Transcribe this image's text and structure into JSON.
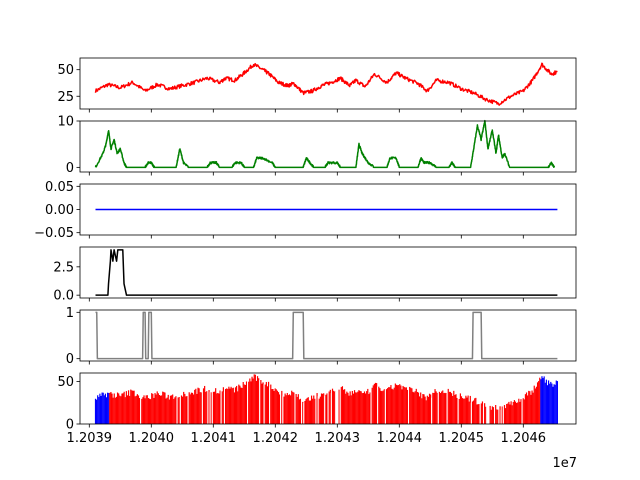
{
  "chart_data": {
    "type": "line",
    "shared_x": {
      "range": [
        12039100,
        12046550
      ],
      "ticks": [
        12039000,
        12040000,
        12041000,
        12042000,
        12043000,
        12044000,
        12045000,
        12046000
      ],
      "tick_labels": [
        "1.2039",
        "1.2040",
        "1.2041",
        "1.2042",
        "1.2043",
        "1.2044",
        "1.2045",
        "1.2046"
      ],
      "multiplier_label": "1e7",
      "xlim": [
        12038850,
        12046850
      ]
    },
    "panels": [
      {
        "type": "line",
        "color": "#ff0000",
        "ylim": [
          13,
          61
        ],
        "yticks": [
          25,
          50
        ],
        "ytick_labels": [
          "25",
          "50"
        ],
        "points": [
          [
            12039100,
            30
          ],
          [
            12039300,
            36
          ],
          [
            12039500,
            33
          ],
          [
            12039700,
            38
          ],
          [
            12039900,
            30
          ],
          [
            12040100,
            36
          ],
          [
            12040300,
            32
          ],
          [
            12040500,
            35
          ],
          [
            12040700,
            38
          ],
          [
            12040900,
            42
          ],
          [
            12041100,
            38
          ],
          [
            12041200,
            42
          ],
          [
            12041350,
            40
          ],
          [
            12041500,
            47
          ],
          [
            12041650,
            55
          ],
          [
            12041800,
            50
          ],
          [
            12041900,
            46
          ],
          [
            12042050,
            38
          ],
          [
            12042200,
            35
          ],
          [
            12042300,
            37
          ],
          [
            12042450,
            28
          ],
          [
            12042600,
            30
          ],
          [
            12042750,
            35
          ],
          [
            12042900,
            38
          ],
          [
            12043050,
            42
          ],
          [
            12043200,
            35
          ],
          [
            12043300,
            40
          ],
          [
            12043450,
            34
          ],
          [
            12043600,
            46
          ],
          [
            12043800,
            38
          ],
          [
            12043950,
            47
          ],
          [
            12044100,
            42
          ],
          [
            12044300,
            37
          ],
          [
            12044450,
            30
          ],
          [
            12044600,
            40
          ],
          [
            12044800,
            38
          ],
          [
            12045000,
            32
          ],
          [
            12045200,
            28
          ],
          [
            12045400,
            22
          ],
          [
            12045600,
            18
          ],
          [
            12045800,
            25
          ],
          [
            12046000,
            30
          ],
          [
            12046150,
            40
          ],
          [
            12046300,
            55
          ],
          [
            12046450,
            46
          ],
          [
            12046550,
            48
          ]
        ]
      },
      {
        "type": "line",
        "color": "#008000",
        "ylim": [
          -1,
          10
        ],
        "yticks": [
          0,
          10
        ],
        "ytick_labels": [
          "0",
          "10"
        ],
        "points": [
          [
            12039100,
            0
          ],
          [
            12039220,
            3
          ],
          [
            12039270,
            5
          ],
          [
            12039310,
            8
          ],
          [
            12039350,
            4
          ],
          [
            12039400,
            6
          ],
          [
            12039450,
            3
          ],
          [
            12039500,
            4
          ],
          [
            12039560,
            1
          ],
          [
            12039600,
            0
          ],
          [
            12039900,
            0
          ],
          [
            12039950,
            1
          ],
          [
            12040000,
            1
          ],
          [
            12040050,
            0
          ],
          [
            12040400,
            0
          ],
          [
            12040460,
            4
          ],
          [
            12040520,
            1
          ],
          [
            12040600,
            0
          ],
          [
            12040900,
            0
          ],
          [
            12040950,
            1
          ],
          [
            12041050,
            1
          ],
          [
            12041100,
            0
          ],
          [
            12041300,
            0
          ],
          [
            12041350,
            1
          ],
          [
            12041450,
            1
          ],
          [
            12041500,
            0
          ],
          [
            12041650,
            0
          ],
          [
            12041700,
            2
          ],
          [
            12041800,
            2
          ],
          [
            12041950,
            1
          ],
          [
            12042000,
            0
          ],
          [
            12042450,
            0
          ],
          [
            12042500,
            2
          ],
          [
            12042560,
            1
          ],
          [
            12042620,
            0
          ],
          [
            12042800,
            0
          ],
          [
            12042850,
            1
          ],
          [
            12043000,
            1
          ],
          [
            12043050,
            0
          ],
          [
            12043300,
            0
          ],
          [
            12043350,
            5
          ],
          [
            12043400,
            3
          ],
          [
            12043450,
            2
          ],
          [
            12043500,
            1
          ],
          [
            12043600,
            0
          ],
          [
            12043800,
            0
          ],
          [
            12043850,
            2
          ],
          [
            12043950,
            2
          ],
          [
            12044000,
            0
          ],
          [
            12044300,
            0
          ],
          [
            12044350,
            2
          ],
          [
            12044400,
            1
          ],
          [
            12044500,
            1
          ],
          [
            12044600,
            0
          ],
          [
            12044800,
            0
          ],
          [
            12044850,
            1
          ],
          [
            12044900,
            0
          ],
          [
            12045150,
            0
          ],
          [
            12045200,
            4
          ],
          [
            12045260,
            9
          ],
          [
            12045320,
            6
          ],
          [
            12045380,
            10
          ],
          [
            12045430,
            4
          ],
          [
            12045500,
            8
          ],
          [
            12045560,
            3
          ],
          [
            12045600,
            7
          ],
          [
            12045660,
            2
          ],
          [
            12045700,
            3
          ],
          [
            12045780,
            0
          ],
          [
            12046400,
            0
          ],
          [
            12046450,
            1
          ],
          [
            12046500,
            0
          ]
        ]
      },
      {
        "type": "line",
        "color": "#0000ff",
        "ylim": [
          -0.055,
          0.055
        ],
        "yticks": [
          -0.05,
          0.0,
          0.05
        ],
        "ytick_labels": [
          "−0.05",
          "0.00",
          "0.05"
        ],
        "points": [
          [
            12039100,
            0
          ],
          [
            12046550,
            0
          ]
        ]
      },
      {
        "type": "line",
        "color": "#000000",
        "ylim": [
          -0.25,
          4.25
        ],
        "yticks": [
          0.0,
          2.5
        ],
        "ytick_labels": [
          "0.0",
          "2.5"
        ],
        "points": [
          [
            12039100,
            0
          ],
          [
            12039300,
            0
          ],
          [
            12039310,
            1
          ],
          [
            12039340,
            3
          ],
          [
            12039350,
            4
          ],
          [
            12039380,
            3
          ],
          [
            12039400,
            4
          ],
          [
            12039440,
            3
          ],
          [
            12039460,
            4
          ],
          [
            12039540,
            4
          ],
          [
            12039560,
            1
          ],
          [
            12039600,
            0
          ],
          [
            12046550,
            0
          ]
        ]
      },
      {
        "type": "step",
        "color": "#808080",
        "ylim": [
          -0.05,
          1.05
        ],
        "yticks": [
          0,
          1
        ],
        "ytick_labels": [
          "0",
          "1"
        ],
        "points": [
          [
            12039100,
            1
          ],
          [
            12039120,
            1
          ],
          [
            12039130,
            0
          ],
          [
            12039860,
            0
          ],
          [
            12039870,
            1
          ],
          [
            12039900,
            1
          ],
          [
            12039910,
            0
          ],
          [
            12039950,
            0
          ],
          [
            12039960,
            1
          ],
          [
            12040000,
            1
          ],
          [
            12040010,
            0
          ],
          [
            12042280,
            0
          ],
          [
            12042290,
            1
          ],
          [
            12042450,
            1
          ],
          [
            12042460,
            0
          ],
          [
            12045180,
            0
          ],
          [
            12045190,
            1
          ],
          [
            12045320,
            1
          ],
          [
            12045330,
            0
          ],
          [
            12046550,
            0
          ]
        ]
      },
      {
        "type": "bar",
        "colors": {
          "down": "#0000ff",
          "up": "#ff0000"
        },
        "ylim": [
          0,
          60
        ],
        "yticks": [
          0,
          50
        ],
        "ytick_labels": [
          "0",
          "50"
        ],
        "blue_ranges": [
          [
            12039100,
            12039330
          ],
          [
            12046280,
            12046550
          ]
        ],
        "points": [
          [
            12039100,
            30
          ],
          [
            12039300,
            36
          ],
          [
            12039500,
            33
          ],
          [
            12039700,
            38
          ],
          [
            12039900,
            30
          ],
          [
            12040100,
            36
          ],
          [
            12040300,
            32
          ],
          [
            12040500,
            35
          ],
          [
            12040700,
            38
          ],
          [
            12040900,
            42
          ],
          [
            12041100,
            38
          ],
          [
            12041200,
            42
          ],
          [
            12041350,
            40
          ],
          [
            12041500,
            47
          ],
          [
            12041650,
            55
          ],
          [
            12041800,
            50
          ],
          [
            12041900,
            46
          ],
          [
            12042050,
            38
          ],
          [
            12042200,
            35
          ],
          [
            12042300,
            37
          ],
          [
            12042450,
            28
          ],
          [
            12042600,
            30
          ],
          [
            12042750,
            35
          ],
          [
            12042900,
            38
          ],
          [
            12043050,
            42
          ],
          [
            12043200,
            35
          ],
          [
            12043300,
            40
          ],
          [
            12043450,
            34
          ],
          [
            12043600,
            46
          ],
          [
            12043800,
            38
          ],
          [
            12043950,
            47
          ],
          [
            12044100,
            42
          ],
          [
            12044300,
            37
          ],
          [
            12044450,
            30
          ],
          [
            12044600,
            40
          ],
          [
            12044800,
            38
          ],
          [
            12045000,
            32
          ],
          [
            12045200,
            28
          ],
          [
            12045400,
            22
          ],
          [
            12045600,
            18
          ],
          [
            12045800,
            25
          ],
          [
            12046000,
            30
          ],
          [
            12046150,
            40
          ],
          [
            12046300,
            55
          ],
          [
            12046450,
            46
          ],
          [
            12046550,
            48
          ]
        ]
      }
    ]
  }
}
